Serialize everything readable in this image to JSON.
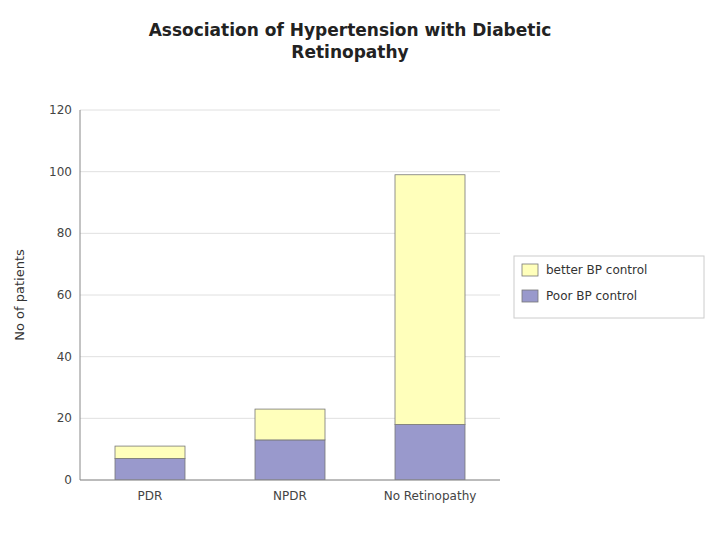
{
  "chart_data": {
    "type": "bar",
    "stacked": true,
    "title": "Association of Hypertension with Diabetic\nRetinopathy",
    "ylabel": "No of patients",
    "categories": [
      "PDR",
      "NPDR",
      "No Retinopathy"
    ],
    "series": [
      {
        "name": "Poor BP control",
        "color": "#9999cc",
        "values": [
          7,
          13,
          18
        ]
      },
      {
        "name": "better BP control",
        "color": "#ffffbb",
        "values": [
          4,
          10,
          81
        ]
      }
    ],
    "ylim": [
      0,
      120
    ],
    "yticks": [
      0,
      20,
      40,
      60,
      80,
      100,
      120
    ],
    "grid": true,
    "legend": "right"
  }
}
